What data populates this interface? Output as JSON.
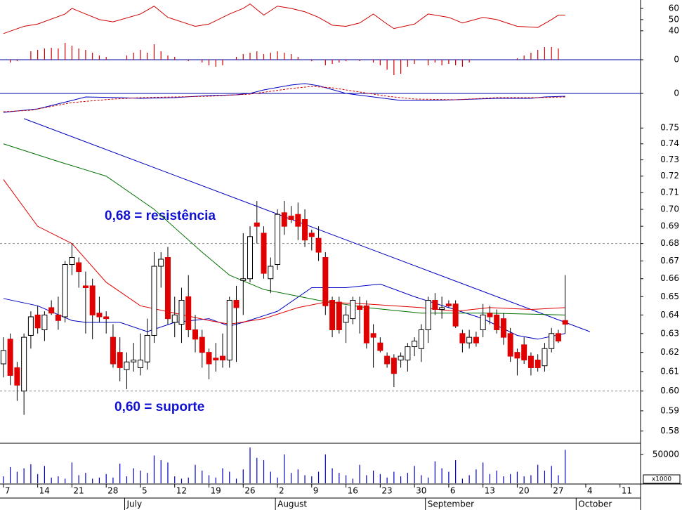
{
  "chart_data": [
    {
      "type": "line",
      "ylim": [
        33,
        67.5
      ],
      "yticks": [
        40,
        50,
        60
      ],
      "series": [
        {
          "color": "#d00000",
          "x": [
            0,
            3,
            5,
            9,
            10,
            12,
            14,
            16,
            20,
            22,
            24,
            26,
            28,
            30,
            33,
            35,
            36,
            38,
            40,
            42,
            44,
            46,
            48,
            50,
            52,
            54,
            56,
            57,
            60,
            62,
            65,
            67,
            70,
            72,
            75,
            78,
            80,
            81,
            82
          ],
          "values": [
            37.5,
            44,
            46,
            55,
            60,
            55,
            50,
            48,
            55,
            62,
            52,
            48,
            44,
            46,
            55,
            60,
            64,
            54,
            62,
            60,
            57,
            52,
            45,
            44,
            47,
            55,
            46,
            42,
            46,
            55,
            52,
            47,
            52,
            50,
            44,
            43,
            50,
            54,
            54
          ]
        }
      ]
    },
    {
      "type": "bar",
      "color": "#d00000",
      "zero_color": "#0000a0",
      "ylim": [
        -27,
        27
      ],
      "yticks": [
        0
      ],
      "values": [
        0,
        -4,
        -2,
        0,
        12,
        14,
        16,
        17,
        16,
        24,
        20,
        16,
        14,
        10,
        6,
        4,
        0,
        0,
        6,
        10,
        14,
        10,
        22,
        12,
        6,
        4,
        0,
        -2,
        0,
        -4,
        -8,
        -10,
        -8,
        0,
        4,
        8,
        10,
        12,
        8,
        10,
        12,
        10,
        8,
        4,
        0,
        -2,
        0,
        -8,
        -6,
        -4,
        -2,
        0,
        -2,
        0,
        -4,
        -8,
        -14,
        -22,
        -20,
        -10,
        -6,
        0,
        -8,
        -4,
        -8,
        -6,
        -8,
        -10,
        -4,
        0,
        0,
        0,
        0,
        0,
        0,
        2,
        6,
        10,
        14,
        18,
        18,
        16,
        0
      ]
    },
    {
      "type": "line",
      "zero_color": "#0000a0",
      "ylim": [
        -27,
        27
      ],
      "yticks": [
        0
      ],
      "series": [
        {
          "color": "#0000c0",
          "x": [
            0,
            5,
            10,
            12,
            17,
            20,
            25,
            30,
            34,
            36,
            38,
            42,
            44,
            46,
            50,
            54,
            58,
            62,
            66,
            72,
            77,
            79,
            82
          ],
          "values": [
            -27,
            -22,
            -10,
            -5,
            -6,
            -7,
            -6,
            -3,
            -2,
            0,
            5,
            12,
            14,
            11,
            0,
            -5,
            -10,
            -10,
            -9,
            -7,
            -7,
            -5,
            -4
          ]
        },
        {
          "color": "#d00000",
          "dash": true,
          "x": [
            0,
            4,
            10,
            16,
            20,
            30,
            36,
            42,
            45,
            48,
            52,
            56,
            60,
            66,
            72,
            78,
            82
          ],
          "values": [
            -26,
            -24,
            -13,
            -8,
            -6,
            -4,
            -1,
            7,
            10,
            8,
            2,
            -4,
            -8,
            -9,
            -6,
            -6,
            -5
          ]
        }
      ]
    },
    {
      "type": "candlestick",
      "log_scale": true,
      "up_color": "#ffffff",
      "down_color": "#e00000",
      "ylim": [
        0.574,
        0.76
      ],
      "yticks": [
        0.75,
        0.74,
        0.73,
        0.72,
        0.71,
        {
          "value": 0.7,
          "label": "0.70"
        },
        0.69,
        0.68,
        0.67,
        0.66,
        0.65,
        0.64,
        0.63,
        0.62,
        0.61,
        {
          "value": 0.6,
          "label": "0.60"
        },
        0.59,
        0.58
      ],
      "open": [
        0.614,
        0.627,
        0.612,
        0.6,
        0.629,
        0.64,
        0.632,
        0.644,
        0.64,
        0.639,
        0.668,
        0.669,
        0.656,
        0.656,
        0.641,
        0.639,
        0.628,
        0.62,
        0.611,
        0.615,
        0.612,
        0.615,
        0.629,
        0.667,
        0.672,
        0.636,
        0.635,
        0.65,
        0.632,
        0.628,
        0.62,
        0.617,
        0.618,
        0.616,
        0.648,
        0.659,
        0.66,
        0.692,
        0.686,
        0.66,
        0.668,
        0.698,
        0.696,
        0.697,
        0.694,
        0.686,
        0.683,
        0.672,
        0.648,
        0.647,
        0.636,
        0.638,
        0.645,
        0.645,
        0.63,
        0.625,
        0.618,
        0.617,
        0.616,
        0.616,
        0.623,
        0.622,
        0.632,
        0.648,
        0.643,
        0.646,
        0.646,
        0.63,
        0.625,
        0.628,
        0.632,
        0.641,
        0.64,
        0.638,
        0.63,
        0.62,
        0.624,
        0.618,
        0.616,
        0.613,
        0.622,
        0.63,
        0.637
      ],
      "high": [
        0.628,
        0.63,
        0.615,
        0.63,
        0.642,
        0.645,
        0.642,
        0.648,
        0.65,
        0.67,
        0.68,
        0.672,
        0.664,
        0.66,
        0.65,
        0.642,
        0.635,
        0.628,
        0.62,
        0.625,
        0.63,
        0.638,
        0.675,
        0.675,
        0.678,
        0.65,
        0.655,
        0.662,
        0.64,
        0.632,
        0.622,
        0.625,
        0.63,
        0.65,
        0.656,
        0.686,
        0.69,
        0.705,
        0.69,
        0.672,
        0.7,
        0.705,
        0.702,
        0.704,
        0.7,
        0.688,
        0.69,
        0.675,
        0.65,
        0.65,
        0.645,
        0.65,
        0.65,
        0.648,
        0.635,
        0.628,
        0.62,
        0.619,
        0.62,
        0.625,
        0.628,
        0.635,
        0.65,
        0.652,
        0.65,
        0.648,
        0.648,
        0.632,
        0.632,
        0.631,
        0.646,
        0.645,
        0.643,
        0.641,
        0.633,
        0.622,
        0.628,
        0.62,
        0.619,
        0.625,
        0.633,
        0.632,
        0.662
      ],
      "low": [
        0.607,
        0.603,
        0.595,
        0.588,
        0.622,
        0.63,
        0.626,
        0.64,
        0.632,
        0.636,
        0.662,
        0.655,
        0.63,
        0.627,
        0.636,
        0.63,
        0.612,
        0.605,
        0.601,
        0.61,
        0.608,
        0.611,
        0.625,
        0.655,
        0.635,
        0.628,
        0.625,
        0.628,
        0.62,
        0.612,
        0.606,
        0.61,
        0.612,
        0.612,
        0.615,
        0.64,
        0.658,
        0.68,
        0.66,
        0.652,
        0.665,
        0.685,
        0.692,
        0.682,
        0.678,
        0.676,
        0.67,
        0.64,
        0.628,
        0.63,
        0.625,
        0.635,
        0.63,
        0.622,
        0.612,
        0.62,
        0.612,
        0.602,
        0.612,
        0.61,
        0.618,
        0.615,
        0.625,
        0.64,
        0.638,
        0.644,
        0.633,
        0.62,
        0.622,
        0.623,
        0.628,
        0.635,
        0.63,
        0.624,
        0.615,
        0.608,
        0.614,
        0.608,
        0.61,
        0.61,
        0.62,
        0.625,
        0.63
      ],
      "close": [
        0.621,
        0.608,
        0.603,
        0.628,
        0.639,
        0.633,
        0.64,
        0.641,
        0.637,
        0.668,
        0.672,
        0.664,
        0.655,
        0.64,
        0.639,
        0.638,
        0.614,
        0.612,
        0.615,
        0.616,
        0.616,
        0.629,
        0.667,
        0.671,
        0.638,
        0.64,
        0.648,
        0.632,
        0.627,
        0.62,
        0.614,
        0.616,
        0.616,
        0.648,
        0.644,
        0.66,
        0.684,
        0.69,
        0.663,
        0.667,
        0.697,
        0.69,
        0.694,
        0.69,
        0.682,
        0.684,
        0.675,
        0.645,
        0.632,
        0.632,
        0.64,
        0.648,
        0.643,
        0.625,
        0.628,
        0.621,
        0.614,
        0.609,
        0.618,
        0.623,
        0.626,
        0.632,
        0.648,
        0.643,
        0.644,
        0.645,
        0.634,
        0.625,
        0.628,
        0.625,
        0.64,
        0.639,
        0.632,
        0.628,
        0.618,
        0.617,
        0.616,
        0.612,
        0.612,
        0.622,
        0.63,
        0.626,
        0.635
      ],
      "series": [
        {
          "color": "#0000c0",
          "x": [
            0,
            5,
            10,
            12,
            17,
            21,
            25,
            30,
            33,
            35,
            40,
            45,
            50,
            55,
            60,
            65,
            70,
            75,
            78,
            82
          ],
          "values": [
            0.649,
            0.645,
            0.637,
            0.636,
            0.636,
            0.631,
            0.636,
            0.638,
            0.634,
            0.636,
            0.642,
            0.655,
            0.655,
            0.657,
            0.65,
            0.644,
            0.638,
            0.629,
            0.627,
            0.63
          ]
        },
        {
          "color": "#e00000",
          "x": [
            0,
            5,
            10,
            15,
            20,
            25,
            30,
            33,
            38,
            43,
            47,
            53,
            61,
            66,
            71,
            77,
            82
          ],
          "values": [
            0.718,
            0.69,
            0.68,
            0.658,
            0.645,
            0.641,
            0.637,
            0.635,
            0.638,
            0.644,
            0.647,
            0.646,
            0.644,
            0.642,
            0.644,
            0.643,
            0.644
          ]
        },
        {
          "color": "#007000",
          "x": [
            0,
            8,
            15,
            22,
            29,
            33,
            38,
            46,
            53,
            61,
            71,
            82
          ],
          "values": [
            0.74,
            0.729,
            0.72,
            0.7,
            0.675,
            0.662,
            0.654,
            0.648,
            0.644,
            0.641,
            0.641,
            0.64
          ]
        }
      ],
      "trendline": {
        "color": "#0000c0",
        "x": [
          3,
          85.6
        ],
        "values": [
          0.756,
          0.631
        ]
      },
      "levels": [
        0.68,
        0.6
      ],
      "annotations": [
        "0,68 = resistência",
        "0,60 = suporte"
      ]
    },
    {
      "type": "bar",
      "color": "#0000c0",
      "ylim": [
        0,
        68000
      ],
      "yticks": [
        50000
      ],
      "unit_label": "x1000",
      "values": [
        12000,
        28000,
        20000,
        26000,
        33000,
        16000,
        30000,
        10000,
        12000,
        8000,
        36000,
        14000,
        18000,
        8000,
        10000,
        16000,
        10000,
        34000,
        12000,
        26000,
        22000,
        18000,
        48000,
        40000,
        36000,
        12000,
        8000,
        10000,
        32000,
        22000,
        14000,
        10000,
        26000,
        20000,
        8000,
        24000,
        62000,
        44000,
        40000,
        20000,
        10000,
        50000,
        18000,
        24000,
        14000,
        12000,
        20000,
        50000,
        26000,
        18000,
        14000,
        8000,
        32000,
        14000,
        22000,
        16000,
        10000,
        20000,
        12000,
        18000,
        30000,
        14000,
        10000,
        38000,
        26000,
        20000,
        40000,
        8000,
        14000,
        24000,
        36000,
        16000,
        22000,
        12000,
        16000,
        20000,
        12000,
        14000,
        32000,
        22000,
        30000,
        14000,
        58000
      ],
      "xlim": [
        -0.5,
        93
      ],
      "xticks": [
        {
          "value": 0,
          "label": "7"
        },
        {
          "value": 5,
          "label": "14"
        },
        {
          "value": 10,
          "label": "21"
        },
        {
          "value": 15,
          "label": "28"
        },
        {
          "value": 20,
          "label": "5"
        },
        {
          "value": 25,
          "label": "12"
        },
        {
          "value": 30,
          "label": "19"
        },
        {
          "value": 35,
          "label": "26"
        },
        {
          "value": 40,
          "label": "2"
        },
        {
          "value": 45,
          "label": "9"
        },
        {
          "value": 50,
          "label": "16"
        },
        {
          "value": 55,
          "label": "23"
        },
        {
          "value": 60,
          "label": "30"
        },
        {
          "value": 65,
          "label": "6"
        },
        {
          "value": 70,
          "label": "13"
        },
        {
          "value": 75,
          "label": "20"
        },
        {
          "value": 80,
          "label": "27"
        },
        {
          "value": 85,
          "label": "4"
        },
        {
          "value": 90,
          "label": "11"
        }
      ],
      "month_ticks": [
        {
          "value": 17.7,
          "label": "July"
        },
        {
          "value": 39.7,
          "label": "August"
        },
        {
          "value": 61.6,
          "label": "September"
        },
        {
          "value": 83.6,
          "label": "October"
        }
      ]
    }
  ]
}
